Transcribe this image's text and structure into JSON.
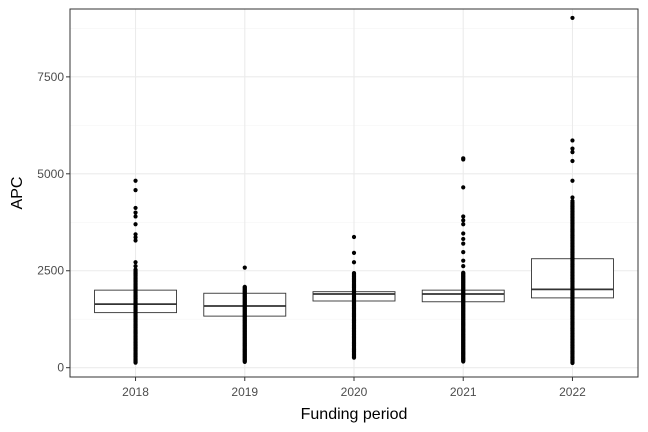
{
  "chart_data": {
    "type": "box",
    "title": "",
    "xlabel": "Funding period",
    "ylabel": "APC",
    "ylim": [
      -240,
      9250
    ],
    "y_ticks": [
      0,
      2500,
      5000,
      7500
    ],
    "y_tick_labels": [
      "0",
      "2500",
      "5000",
      "7500"
    ],
    "categories": [
      "2018",
      "2019",
      "2020",
      "2021",
      "2022"
    ],
    "grid": true,
    "theme": "bw",
    "boxes": [
      {
        "category": "2018",
        "q1": 1420,
        "median": 1640,
        "q3": 2000,
        "whisker_low": 130,
        "whisker_high": 2540,
        "outliers": [
          2620,
          2720,
          3280,
          3360,
          3440,
          3700,
          3900,
          4000,
          4120,
          4580,
          4820
        ]
      },
      {
        "category": "2019",
        "q1": 1330,
        "median": 1590,
        "q3": 1920,
        "whisker_low": 150,
        "whisker_high": 2100,
        "outliers": [
          2580
        ]
      },
      {
        "category": "2020",
        "q1": 1720,
        "median": 1900,
        "q3": 1960,
        "whisker_low": 260,
        "whisker_high": 2440,
        "outliers": [
          2720,
          2960,
          3370
        ]
      },
      {
        "category": "2021",
        "q1": 1700,
        "median": 1900,
        "q3": 2000,
        "whisker_low": 160,
        "whisker_high": 2450,
        "outliers": [
          2620,
          2760,
          2980,
          3200,
          3320,
          3460,
          3700,
          3800,
          3900,
          4650,
          5370,
          5400
        ]
      },
      {
        "category": "2022",
        "q1": 1800,
        "median": 2020,
        "q3": 2810,
        "whisker_low": 120,
        "whisker_high": 4270,
        "outliers": [
          4300,
          4390,
          4820,
          5330,
          5560,
          5650,
          5860,
          9020
        ]
      }
    ]
  }
}
